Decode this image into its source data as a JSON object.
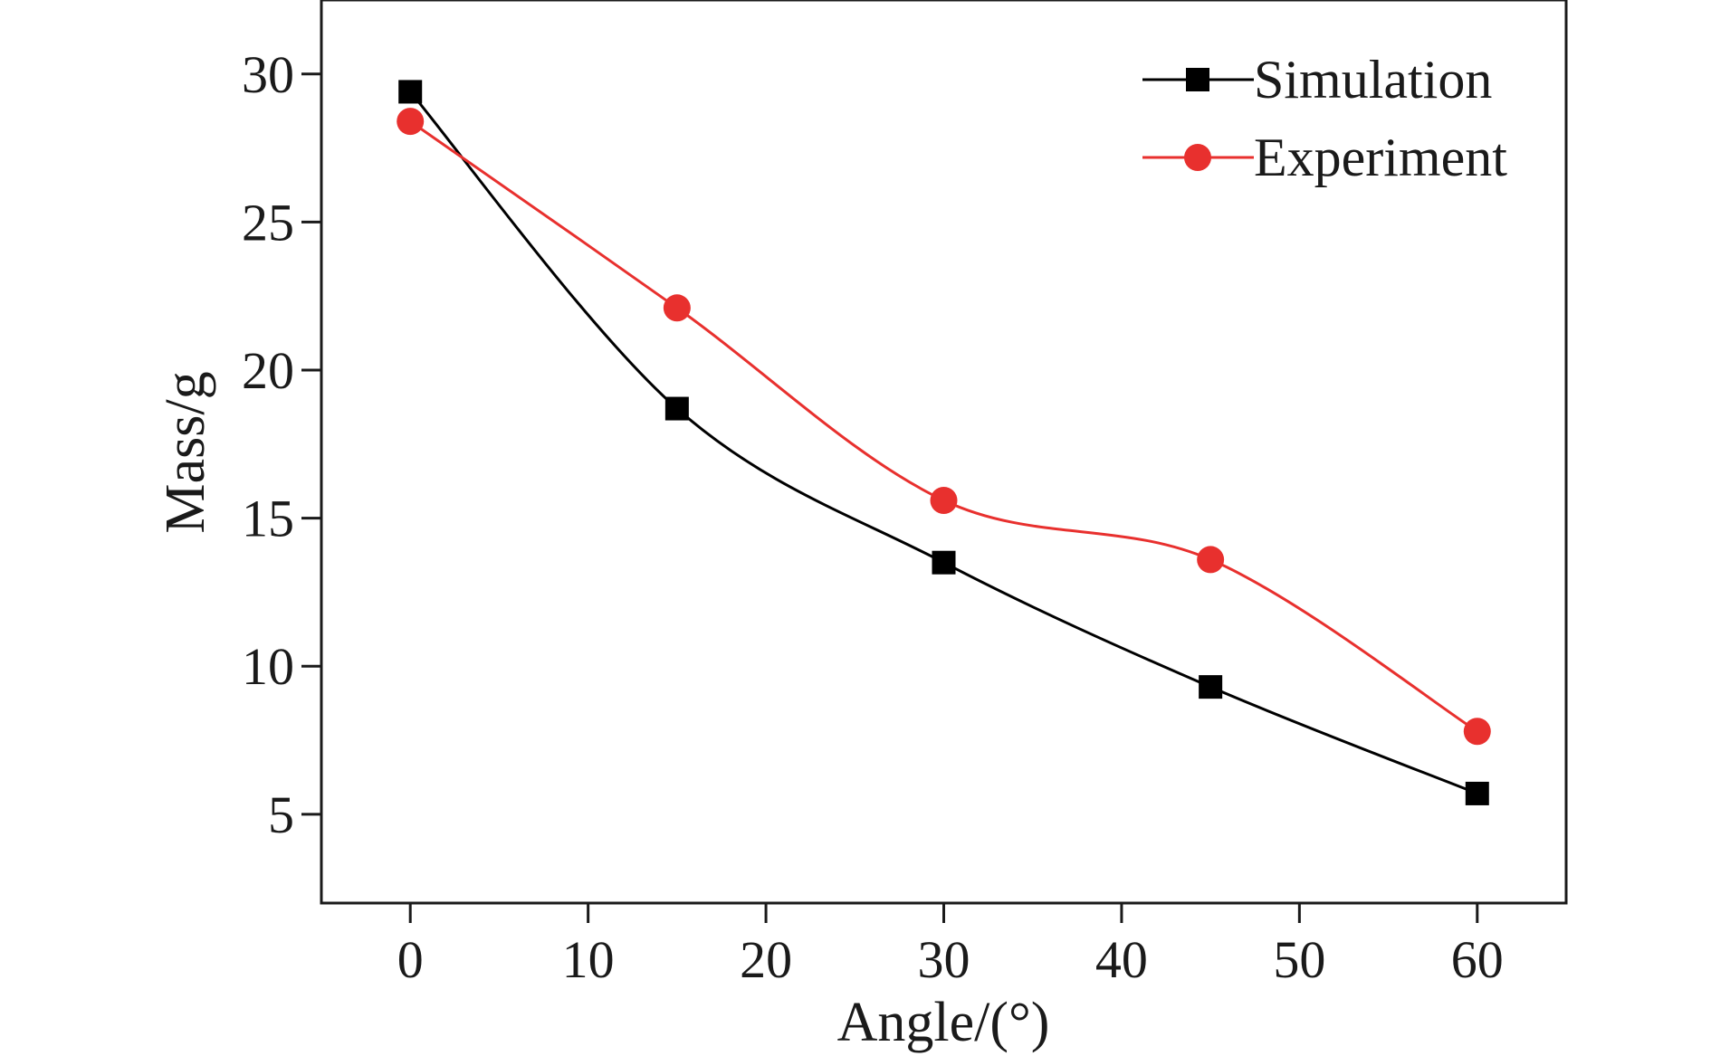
{
  "chart_data": {
    "type": "line",
    "xlabel": "Angle/(°)",
    "ylabel": "Mass/g",
    "xlim": [
      -5,
      65
    ],
    "ylim": [
      2,
      32.5
    ],
    "xticks": [
      0,
      10,
      20,
      30,
      40,
      50,
      60
    ],
    "yticks": [
      5,
      10,
      15,
      20,
      25,
      30
    ],
    "grid": false,
    "legend_position": "top-right",
    "smooth": true,
    "series": [
      {
        "name": "Simulation",
        "color": "#000000",
        "marker": "square",
        "x": [
          0,
          15,
          30,
          45,
          60
        ],
        "y": [
          29.4,
          18.7,
          13.5,
          9.3,
          5.7
        ]
      },
      {
        "name": "Experiment",
        "color": "#e8302e",
        "marker": "circle",
        "x": [
          0,
          15,
          30,
          45,
          60
        ],
        "y": [
          28.4,
          22.1,
          15.6,
          13.6,
          7.8
        ]
      }
    ]
  }
}
